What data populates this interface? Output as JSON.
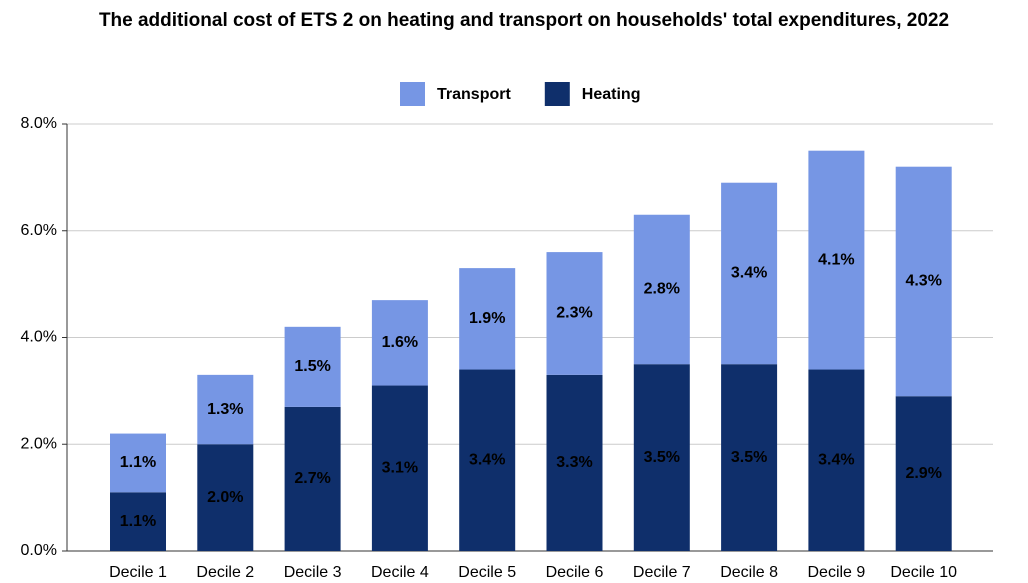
{
  "chart_data": {
    "type": "stacked_bar",
    "title": "The additional cost of ETS 2 on heating and transport on households' total expenditures, 2022",
    "categories": [
      "Decile 1",
      "Decile 2",
      "Decile 3",
      "Decile 4",
      "Decile 5",
      "Decile 6",
      "Decile 7",
      "Decile 8",
      "Decile 9",
      "Decile 10"
    ],
    "series": [
      {
        "name": "Transport",
        "color": "#7696e4",
        "values": [
          1.1,
          1.3,
          1.5,
          1.6,
          1.9,
          2.3,
          2.8,
          3.4,
          4.1,
          4.3
        ],
        "value_labels": [
          "1.1%",
          "1.3%",
          "1.5%",
          "1.6%",
          "1.9%",
          "2.3%",
          "2.8%",
          "3.4%",
          "4.1%",
          "4.3%"
        ]
      },
      {
        "name": "Heating",
        "color": "#0f2f6b",
        "values": [
          1.1,
          2.0,
          2.7,
          3.1,
          3.4,
          3.3,
          3.5,
          3.5,
          3.4,
          2.9
        ],
        "value_labels": [
          "1.1%",
          "2.0%",
          "2.7%",
          "3.1%",
          "3.4%",
          "3.3%",
          "3.5%",
          "3.5%",
          "3.4%",
          "2.9%"
        ]
      }
    ],
    "ylim": [
      0,
      8
    ],
    "yticks": [
      {
        "value": 0,
        "label": "0.0%"
      },
      {
        "value": 2,
        "label": "2.0%"
      },
      {
        "value": 4,
        "label": "4.0%"
      },
      {
        "value": 6,
        "label": "6.0%"
      },
      {
        "value": 8,
        "label": "8.0%"
      }
    ],
    "grid": true,
    "legend": "top"
  }
}
